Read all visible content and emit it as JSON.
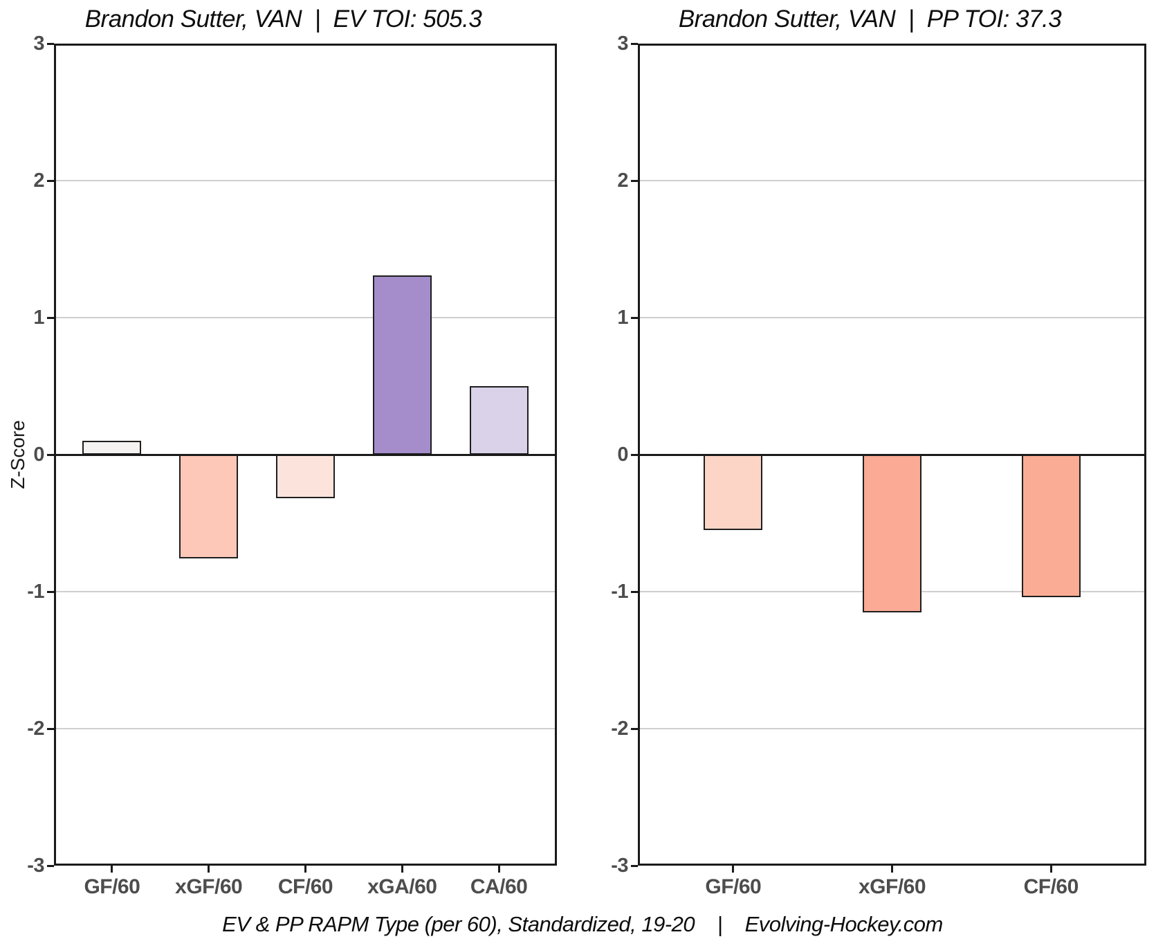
{
  "ylabel": "Z-Score",
  "footer": {
    "text": "EV & PP RAPM Type (per 60), Standardized, 19-20    |    Evolving-Hockey.com"
  },
  "styles": {
    "background": "#ffffff",
    "bar_border": "#1e1e1e",
    "grid_color": "#cfcfcf",
    "axis_line_color": "#1a1a1a",
    "tick_label_color": "#4d4d4d",
    "title_color": "#0d0d0d"
  },
  "chart_data": [
    {
      "type": "bar",
      "title": "Brandon Sutter, VAN  |  EV TOI: 505.3",
      "categories": [
        "GF/60",
        "xGF/60",
        "CF/60",
        "xGA/60",
        "CA/60"
      ],
      "values": [
        0.1,
        -0.76,
        -0.32,
        1.31,
        0.5
      ],
      "bar_colors": [
        "#f5f3f1",
        "#fec8b8",
        "#fce4dc",
        "#a48dca",
        "#dad2e8"
      ],
      "xlabel": "",
      "ylabel": "Z-Score",
      "ylim": [
        -3,
        3
      ],
      "yticks": [
        3,
        2,
        1,
        0,
        -1,
        -2,
        -3
      ],
      "grid": true,
      "legend": "none"
    },
    {
      "type": "bar",
      "title": "Brandon Sutter, VAN  |  PP TOI: 37.3",
      "categories": [
        "GF/60",
        "xGF/60",
        "CF/60"
      ],
      "values": [
        -0.55,
        -1.15,
        -1.04
      ],
      "bar_colors": [
        "#fcd5c7",
        "#faaa95",
        "#faac94"
      ],
      "xlabel": "",
      "ylabel": "",
      "ylim": [
        -3,
        3
      ],
      "yticks": [
        3,
        2,
        1,
        0,
        -1,
        -2,
        -3
      ],
      "grid": true,
      "legend": "none"
    }
  ]
}
